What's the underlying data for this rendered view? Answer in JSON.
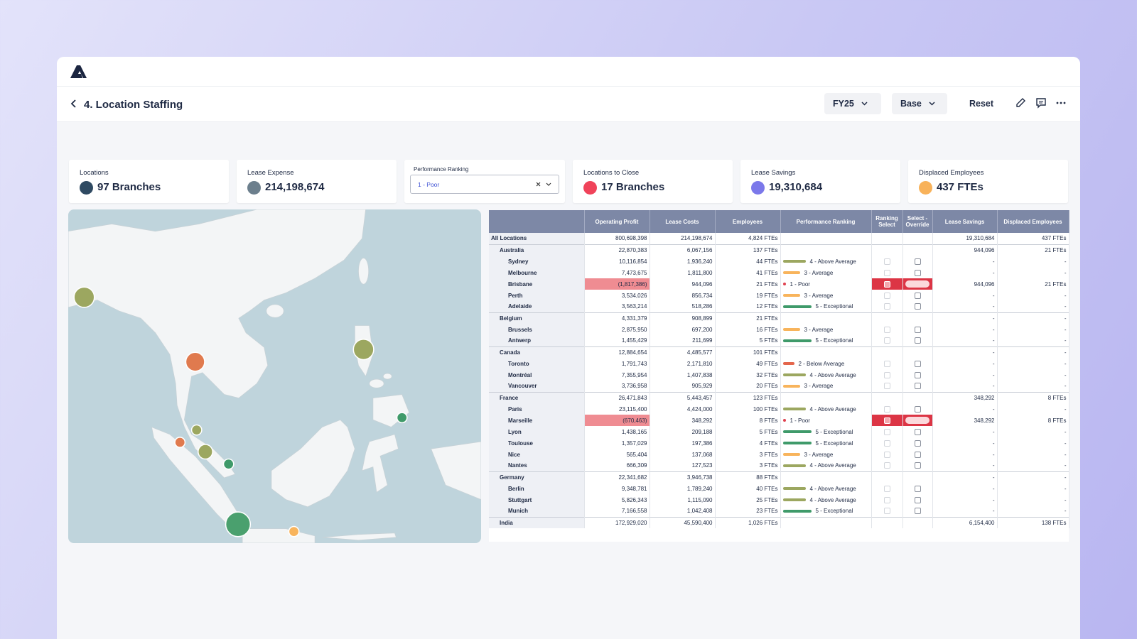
{
  "header": {
    "title": "4. Location Staffing",
    "filters": [
      "FY25",
      "Base"
    ],
    "reset": "Reset"
  },
  "kpis": [
    {
      "label": "Locations",
      "value": "97 Branches",
      "color": "#2f4a62"
    },
    {
      "label": "Lease Expense",
      "value": "214,198,674",
      "color": "#6c7f8d"
    },
    {
      "label": "Locations to Close",
      "value": "17 Branches",
      "color": "#f0435a"
    },
    {
      "label": "Lease Savings",
      "value": "19,310,684",
      "color": "#7b78ea"
    },
    {
      "label": "Displaced Employees",
      "value": "437 FTEs",
      "color": "#f8b25a"
    }
  ],
  "performance_filter": {
    "label": "Performance Ranking",
    "value": "1 - Poor"
  },
  "table": {
    "columns": [
      "Operating Profit",
      "Lease Costs",
      "Employees",
      "Performance Ranking",
      "Ranking Select",
      "Select - Override",
      "Lease Savings",
      "Displaced Employees"
    ],
    "total": {
      "cells": [
        "All Locations",
        "800,698,398",
        "214,198,674",
        "4,824 FTEs",
        "19,310,684",
        "437 FTEs"
      ]
    },
    "groups": [
      {
        "cells": [
          "Australia",
          "22,870,383",
          "6,067,156",
          "137 FTEs",
          "944,096",
          "21 FTEs"
        ],
        "children": [
          {
            "cells": [
              "Sydney",
              "10,116,854",
              "1,936,240",
              "44 FTEs",
              "-",
              "-"
            ],
            "ranking": "4 - Above Average",
            "ranking_color": "#9ca760"
          },
          {
            "cells": [
              "Melbourne",
              "7,473,675",
              "1,811,800",
              "41 FTEs",
              "-",
              "-"
            ],
            "ranking": "3 - Average",
            "ranking_color": "#f8b45c"
          },
          {
            "cells": [
              "Brisbane",
              "(1,817,386)",
              "944,096",
              "21 FTEs",
              "944,096",
              "21 FTEs"
            ],
            "ranking": "1 - Poor",
            "ranking_color": "#e0414f",
            "selected": true
          },
          {
            "cells": [
              "Perth",
              "3,534,026",
              "856,734",
              "19 FTEs",
              "-",
              "-"
            ],
            "ranking": "3 - Average",
            "ranking_color": "#f8b45c"
          },
          {
            "cells": [
              "Adelaide",
              "3,563,214",
              "518,286",
              "12 FTEs",
              "-",
              "-"
            ],
            "ranking": "5 - Exceptional",
            "ranking_color": "#3f9a6a"
          }
        ]
      },
      {
        "cells": [
          "Belgium",
          "4,331,379",
          "908,899",
          "21 FTEs",
          "-",
          "-"
        ],
        "children": [
          {
            "cells": [
              "Brussels",
              "2,875,950",
              "697,200",
              "16 FTEs",
              "-",
              "-"
            ],
            "ranking": "3 - Average",
            "ranking_color": "#f8b45c"
          },
          {
            "cells": [
              "Antwerp",
              "1,455,429",
              "211,699",
              "5 FTEs",
              "-",
              "-"
            ],
            "ranking": "5 - Exceptional",
            "ranking_color": "#3f9a6a"
          }
        ]
      },
      {
        "cells": [
          "Canada",
          "12,884,654",
          "4,485,577",
          "101 FTEs",
          "-",
          "-"
        ],
        "children": [
          {
            "cells": [
              "Toronto",
              "1,791,743",
              "2,171,810",
              "49 FTEs",
              "-",
              "-"
            ],
            "ranking": "2 - Below Average",
            "ranking_color": "#e4664c"
          },
          {
            "cells": [
              "Montréal",
              "7,355,954",
              "1,407,838",
              "32 FTEs",
              "-",
              "-"
            ],
            "ranking": "4 - Above Average",
            "ranking_color": "#9ca760"
          },
          {
            "cells": [
              "Vancouver",
              "3,736,958",
              "905,929",
              "20 FTEs",
              "-",
              "-"
            ],
            "ranking": "3 - Average",
            "ranking_color": "#f8b45c"
          }
        ]
      },
      {
        "cells": [
          "France",
          "26,471,843",
          "5,443,457",
          "123 FTEs",
          "348,292",
          "8 FTEs"
        ],
        "children": [
          {
            "cells": [
              "Paris",
              "23,115,400",
              "4,424,000",
              "100 FTEs",
              "-",
              "-"
            ],
            "ranking": "4 - Above Average",
            "ranking_color": "#9ca760"
          },
          {
            "cells": [
              "Marseille",
              "(670,463)",
              "348,292",
              "8 FTEs",
              "348,292",
              "8 FTEs"
            ],
            "ranking": "1 - Poor",
            "ranking_color": "#e0414f",
            "selected": true
          },
          {
            "cells": [
              "Lyon",
              "1,438,165",
              "209,188",
              "5 FTEs",
              "-",
              "-"
            ],
            "ranking": "5 - Exceptional",
            "ranking_color": "#3f9a6a"
          },
          {
            "cells": [
              "Toulouse",
              "1,357,029",
              "197,386",
              "4 FTEs",
              "-",
              "-"
            ],
            "ranking": "5 - Exceptional",
            "ranking_color": "#3f9a6a"
          },
          {
            "cells": [
              "Nice",
              "565,404",
              "137,068",
              "3 FTEs",
              "-",
              "-"
            ],
            "ranking": "3 - Average",
            "ranking_color": "#f8b45c"
          },
          {
            "cells": [
              "Nantes",
              "666,309",
              "127,523",
              "3 FTEs",
              "-",
              "-"
            ],
            "ranking": "4 - Above Average",
            "ranking_color": "#9ca760"
          }
        ]
      },
      {
        "cells": [
          "Germany",
          "22,341,682",
          "3,946,738",
          "88 FTEs",
          "-",
          "-"
        ],
        "children": [
          {
            "cells": [
              "Berlin",
              "9,348,781",
              "1,789,240",
              "40 FTEs",
              "-",
              "-"
            ],
            "ranking": "4 - Above Average",
            "ranking_color": "#9ca760"
          },
          {
            "cells": [
              "Stuttgart",
              "5,826,343",
              "1,115,090",
              "25 FTEs",
              "-",
              "-"
            ],
            "ranking": "4 - Above Average",
            "ranking_color": "#9ca760"
          },
          {
            "cells": [
              "Munich",
              "7,166,558",
              "1,042,408",
              "23 FTEs",
              "-",
              "-"
            ],
            "ranking": "5 - Exceptional",
            "ranking_color": "#3f9a6a"
          }
        ]
      },
      {
        "cells": [
          "India",
          "172,929,020",
          "45,590,400",
          "1,026 FTEs",
          "6,154,400",
          "138 FTEs"
        ],
        "children": []
      }
    ]
  }
}
